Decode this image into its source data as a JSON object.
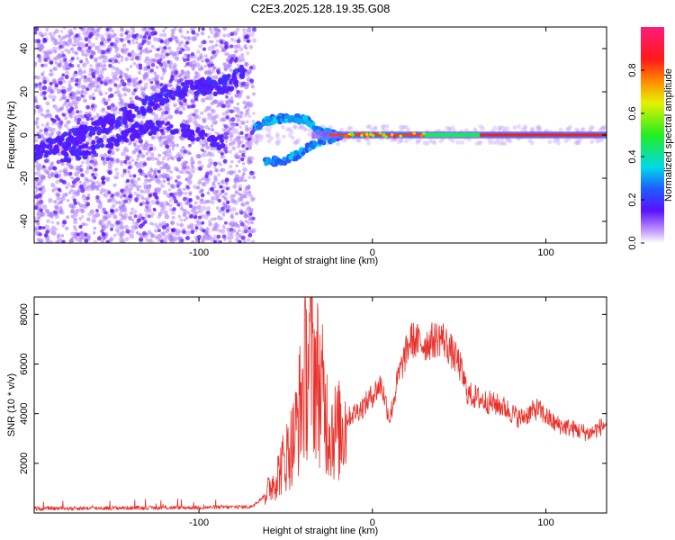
{
  "title": "C2E3.2025.128.19.35.G08",
  "chart_data": [
    {
      "type": "heatmap",
      "xlabel": "Height of straight line (km)",
      "ylabel": "Frequency (Hz)",
      "xlim": [
        -195,
        135
      ],
      "ylim": [
        -50,
        50
      ],
      "xticks": [
        -100,
        0,
        100
      ],
      "yticks": [
        -40,
        -20,
        0,
        20,
        40
      ],
      "colorbar": {
        "label": "Normalized spectral amplitude",
        "range": [
          0,
          1
        ],
        "ticks": [
          0.0,
          0.2,
          0.4,
          0.6,
          0.8
        ]
      },
      "ridge": [
        [
          -195,
          -8
        ],
        [
          -180,
          -4
        ],
        [
          -160,
          3
        ],
        [
          -140,
          10
        ],
        [
          -120,
          18
        ],
        [
          -100,
          23
        ],
        [
          -90,
          22
        ],
        [
          -80,
          25
        ],
        [
          -74,
          30
        ]
      ],
      "ridge_lower": [
        [
          -180,
          -10
        ],
        [
          -160,
          -6
        ],
        [
          -140,
          1
        ],
        [
          -120,
          5
        ],
        [
          -100,
          0
        ],
        [
          -85,
          -4
        ]
      ],
      "arc_upper": [
        [
          -68,
          4
        ],
        [
          -58,
          7
        ],
        [
          -48,
          8
        ],
        [
          -38,
          7
        ],
        [
          -30,
          2
        ],
        [
          -22,
          0
        ]
      ],
      "arc_lower": [
        [
          -62,
          -12
        ],
        [
          -52,
          -12
        ],
        [
          -42,
          -9
        ],
        [
          -34,
          -4
        ],
        [
          -26,
          -2
        ],
        [
          -18,
          0
        ]
      ],
      "carrier": {
        "frequency_hz": 0,
        "x_start_km": -25,
        "x_end_km": 135
      }
    },
    {
      "type": "line",
      "xlabel": "Height of straight line (km)",
      "ylabel": "SNR (10 * v/v)",
      "xlim": [
        -195,
        135
      ],
      "ylim": [
        0,
        8700
      ],
      "xticks": [
        -100,
        0,
        100
      ],
      "yticks": [
        2000,
        4000,
        6000,
        8000
      ],
      "color": "#e8322c",
      "envelope": [
        [
          -195,
          180
        ],
        [
          -150,
          200
        ],
        [
          -100,
          220
        ],
        [
          -70,
          250
        ],
        [
          -62,
          700
        ],
        [
          -55,
          1500
        ],
        [
          -45,
          3000
        ],
        [
          -40,
          5000
        ],
        [
          -36,
          6500
        ],
        [
          -30,
          5000
        ],
        [
          -25,
          3500
        ],
        [
          -20,
          3200
        ],
        [
          -15,
          3800
        ],
        [
          -5,
          4300
        ],
        [
          5,
          5200
        ],
        [
          10,
          3800
        ],
        [
          15,
          5500
        ],
        [
          22,
          7000
        ],
        [
          30,
          6800
        ],
        [
          40,
          7100
        ],
        [
          50,
          6000
        ],
        [
          55,
          4800
        ],
        [
          65,
          4500
        ],
        [
          75,
          4300
        ],
        [
          85,
          3800
        ],
        [
          95,
          4200
        ],
        [
          105,
          3600
        ],
        [
          115,
          3400
        ],
        [
          125,
          3200
        ],
        [
          135,
          3600
        ]
      ]
    }
  ]
}
